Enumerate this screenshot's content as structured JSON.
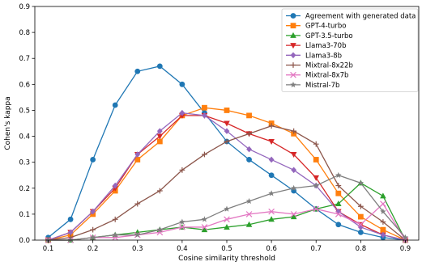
{
  "chart_data": {
    "type": "line",
    "xlabel": "Cosine similarity threshold",
    "ylabel": "Cohen's kappa",
    "xlim": [
      0.07,
      0.93
    ],
    "ylim": [
      0.0,
      0.9
    ],
    "xticks": [
      0.1,
      0.2,
      0.3,
      0.4,
      0.5,
      0.6,
      0.7,
      0.8,
      0.9
    ],
    "yticks": [
      0.0,
      0.1,
      0.2,
      0.3,
      0.4,
      0.5,
      0.6,
      0.7,
      0.8,
      0.9
    ],
    "grid": false,
    "legend_position": "top-right",
    "x": [
      0.1,
      0.15,
      0.2,
      0.25,
      0.3,
      0.35,
      0.4,
      0.45,
      0.5,
      0.55,
      0.6,
      0.65,
      0.7,
      0.75,
      0.8,
      0.85,
      0.9
    ],
    "series": [
      {
        "name": "Agreement with generated data",
        "color": "#1f77b4",
        "marker": "circle",
        "values": [
          0.01,
          0.08,
          0.31,
          0.52,
          0.65,
          0.67,
          0.6,
          0.49,
          0.38,
          0.31,
          0.25,
          0.19,
          0.12,
          0.06,
          0.03,
          0.01,
          0.0
        ]
      },
      {
        "name": "GPT-4-turbo",
        "color": "#ff7f0e",
        "marker": "square",
        "values": [
          0.0,
          0.02,
          0.1,
          0.19,
          0.31,
          0.38,
          0.48,
          0.51,
          0.5,
          0.48,
          0.45,
          0.41,
          0.31,
          0.18,
          0.09,
          0.04,
          0.0
        ]
      },
      {
        "name": "GPT-3.5-turbo",
        "color": "#2ca02c",
        "marker": "triangle-up",
        "values": [
          0.0,
          0.0,
          0.01,
          0.02,
          0.03,
          0.04,
          0.05,
          0.04,
          0.05,
          0.06,
          0.08,
          0.09,
          0.12,
          0.14,
          0.22,
          0.17,
          0.0
        ]
      },
      {
        "name": "Llama3-70b",
        "color": "#d62728",
        "marker": "triangle-down",
        "values": [
          0.0,
          0.03,
          0.11,
          0.2,
          0.33,
          0.4,
          0.48,
          0.48,
          0.45,
          0.41,
          0.38,
          0.33,
          0.24,
          0.11,
          0.06,
          0.02,
          0.0
        ]
      },
      {
        "name": "Llama3-8b",
        "color": "#9467bd",
        "marker": "diamond",
        "values": [
          0.0,
          0.03,
          0.11,
          0.21,
          0.33,
          0.42,
          0.49,
          0.48,
          0.42,
          0.35,
          0.31,
          0.27,
          0.21,
          0.11,
          0.05,
          0.02,
          0.0
        ]
      },
      {
        "name": "Mixtral-8x22b",
        "color": "#8c564b",
        "marker": "plus",
        "values": [
          0.0,
          0.01,
          0.04,
          0.08,
          0.14,
          0.19,
          0.27,
          0.33,
          0.38,
          0.41,
          0.44,
          0.42,
          0.37,
          0.21,
          0.13,
          0.07,
          0.0
        ]
      },
      {
        "name": "Mixtral-8x7b",
        "color": "#e377c2",
        "marker": "x",
        "values": [
          0.0,
          0.0,
          0.01,
          0.01,
          0.02,
          0.03,
          0.05,
          0.05,
          0.08,
          0.1,
          0.11,
          0.1,
          0.12,
          0.1,
          0.06,
          0.14,
          0.0
        ]
      },
      {
        "name": "Mistral-7b",
        "color": "#7f7f7f",
        "marker": "star",
        "values": [
          0.0,
          0.0,
          0.01,
          0.02,
          0.02,
          0.04,
          0.07,
          0.08,
          0.12,
          0.15,
          0.18,
          0.2,
          0.21,
          0.25,
          0.22,
          0.11,
          0.01
        ]
      }
    ]
  }
}
